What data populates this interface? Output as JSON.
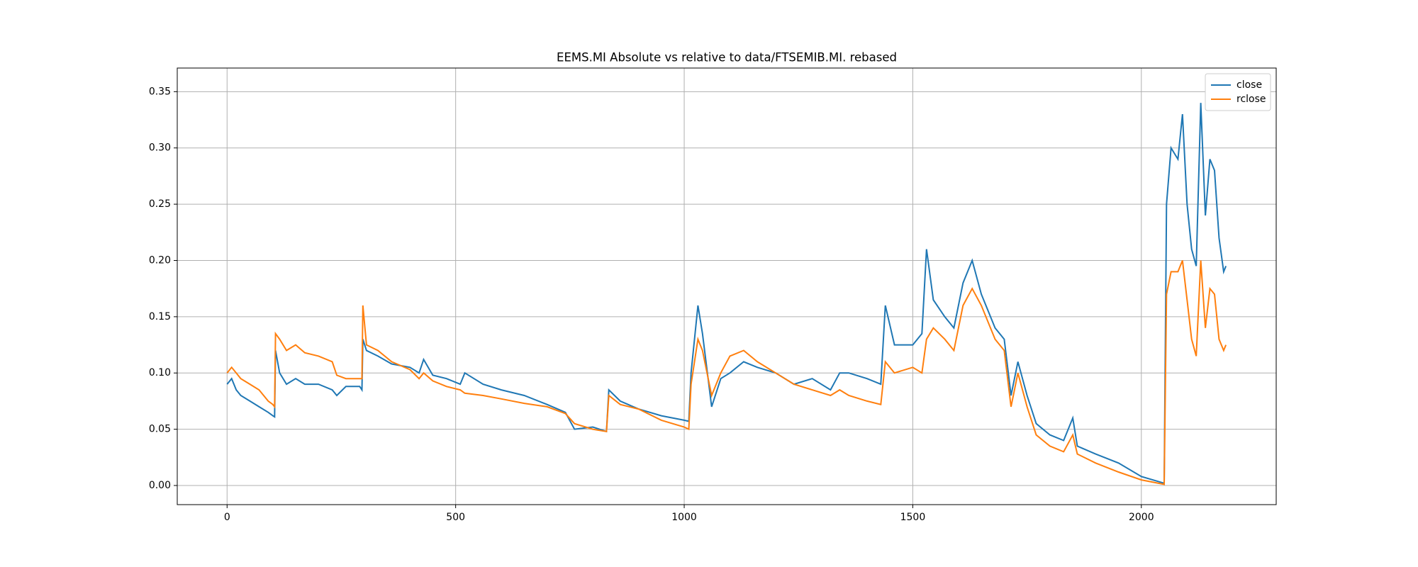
{
  "chart_data": {
    "type": "line",
    "title": "EEMS.MI Absolute vs relative to data/FTSEMIB.MI. rebased",
    "x": [
      0,
      10,
      20,
      30,
      50,
      70,
      90,
      100,
      104,
      106,
      115,
      130,
      150,
      170,
      200,
      230,
      240,
      260,
      290,
      295,
      297,
      305,
      330,
      360,
      400,
      420,
      430,
      450,
      480,
      510,
      520,
      560,
      600,
      650,
      700,
      740,
      760,
      800,
      830,
      835,
      860,
      900,
      950,
      1000,
      1010,
      1015,
      1030,
      1040,
      1060,
      1080,
      1100,
      1130,
      1160,
      1200,
      1240,
      1280,
      1320,
      1340,
      1360,
      1400,
      1430,
      1440,
      1460,
      1500,
      1520,
      1530,
      1545,
      1570,
      1590,
      1610,
      1630,
      1650,
      1680,
      1700,
      1715,
      1730,
      1750,
      1770,
      1800,
      1830,
      1850,
      1860,
      1900,
      1950,
      2000,
      2050,
      2055,
      2065,
      2080,
      2090,
      2100,
      2110,
      2120,
      2130,
      2140,
      2150,
      2160,
      2170,
      2180,
      2185
    ],
    "series": [
      {
        "name": "close",
        "color": "#1f77b4",
        "values": [
          0.09,
          0.095,
          0.085,
          0.08,
          0.075,
          0.07,
          0.065,
          0.062,
          0.061,
          0.12,
          0.1,
          0.09,
          0.095,
          0.09,
          0.09,
          0.085,
          0.08,
          0.088,
          0.088,
          0.085,
          0.13,
          0.12,
          0.115,
          0.108,
          0.105,
          0.1,
          0.112,
          0.098,
          0.095,
          0.09,
          0.1,
          0.09,
          0.085,
          0.08,
          0.072,
          0.065,
          0.05,
          0.052,
          0.048,
          0.085,
          0.075,
          0.068,
          0.062,
          0.058,
          0.057,
          0.1,
          0.16,
          0.135,
          0.07,
          0.095,
          0.1,
          0.11,
          0.105,
          0.1,
          0.09,
          0.095,
          0.085,
          0.1,
          0.1,
          0.095,
          0.09,
          0.16,
          0.125,
          0.125,
          0.135,
          0.21,
          0.165,
          0.15,
          0.14,
          0.18,
          0.2,
          0.17,
          0.14,
          0.13,
          0.08,
          0.11,
          0.08,
          0.055,
          0.045,
          0.04,
          0.06,
          0.035,
          0.028,
          0.02,
          0.008,
          0.002,
          0.25,
          0.3,
          0.29,
          0.33,
          0.25,
          0.21,
          0.195,
          0.34,
          0.24,
          0.29,
          0.28,
          0.22,
          0.19,
          0.195
        ]
      },
      {
        "name": "rclose",
        "color": "#ff7f0e",
        "values": [
          0.1,
          0.105,
          0.1,
          0.095,
          0.09,
          0.085,
          0.075,
          0.072,
          0.07,
          0.135,
          0.13,
          0.12,
          0.125,
          0.118,
          0.115,
          0.11,
          0.098,
          0.095,
          0.095,
          0.095,
          0.16,
          0.125,
          0.12,
          0.11,
          0.103,
          0.095,
          0.1,
          0.093,
          0.088,
          0.085,
          0.082,
          0.08,
          0.077,
          0.073,
          0.07,
          0.064,
          0.055,
          0.05,
          0.048,
          0.08,
          0.072,
          0.068,
          0.058,
          0.052,
          0.05,
          0.09,
          0.13,
          0.12,
          0.08,
          0.1,
          0.115,
          0.12,
          0.11,
          0.1,
          0.09,
          0.085,
          0.08,
          0.085,
          0.08,
          0.075,
          0.072,
          0.11,
          0.1,
          0.105,
          0.1,
          0.13,
          0.14,
          0.13,
          0.12,
          0.16,
          0.175,
          0.16,
          0.13,
          0.12,
          0.07,
          0.1,
          0.07,
          0.045,
          0.035,
          0.03,
          0.045,
          0.028,
          0.02,
          0.012,
          0.005,
          0.001,
          0.17,
          0.19,
          0.19,
          0.2,
          0.165,
          0.13,
          0.115,
          0.2,
          0.14,
          0.175,
          0.17,
          0.13,
          0.12,
          0.125
        ]
      }
    ],
    "xlim": [
      -109,
      2295
    ],
    "ylim": [
      -0.017,
      0.371
    ],
    "xticks": [
      0,
      500,
      1000,
      1500,
      2000
    ],
    "yticks": [
      {
        "value": 0,
        "label": "0.00"
      },
      {
        "value": 0.05,
        "label": "0.05"
      },
      {
        "value": 0.1,
        "label": "0.10"
      },
      {
        "value": 0.15,
        "label": "0.15"
      },
      {
        "value": 0.2,
        "label": "0.20"
      },
      {
        "value": 0.25,
        "label": "0.25"
      },
      {
        "value": 0.3,
        "label": "0.30"
      },
      {
        "value": 0.35,
        "label": "0.35"
      }
    ],
    "grid": true,
    "legend": "upper right"
  }
}
